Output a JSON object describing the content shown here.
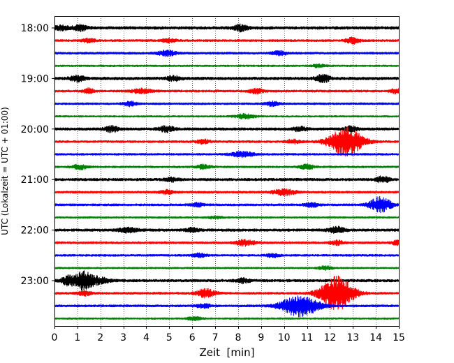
{
  "chart_data": {
    "type": "line",
    "title": "",
    "xlabel": "Zeit  [min]",
    "ylabel": "UTC (Lokalzeit = UTC + 01:00)",
    "xlim": [
      0,
      15
    ],
    "x_ticks": [
      0,
      1,
      2,
      3,
      4,
      5,
      6,
      7,
      8,
      9,
      10,
      11,
      12,
      13,
      14,
      15
    ],
    "x_tick_labels": [
      "0",
      "1",
      "2",
      "3",
      "4",
      "5",
      "6",
      "7",
      "8",
      "9",
      "10",
      "11",
      "12",
      "13",
      "14",
      "15"
    ],
    "grid": "vertical-dotted",
    "minutes_per_trace": 15,
    "trace_color_cycle": [
      "#000000",
      "#ff0000",
      "#0000ff",
      "#008000"
    ],
    "y_tick_labels": [
      {
        "label": "18:00",
        "trace_index": 0
      },
      {
        "label": "19:00",
        "trace_index": 4
      },
      {
        "label": "20:00",
        "trace_index": 8
      },
      {
        "label": "21:00",
        "trace_index": 12
      },
      {
        "label": "22:00",
        "trace_index": 16
      },
      {
        "label": "23:00",
        "trace_index": 20
      }
    ],
    "traces": [
      {
        "start": "18:00",
        "color": "#000000",
        "noise": 2.0,
        "bursts": [
          {
            "t": 0.3,
            "amp": 3,
            "w": 0.3
          },
          {
            "t": 1.1,
            "amp": 4,
            "w": 0.3
          },
          {
            "t": 8.1,
            "amp": 4,
            "w": 0.3
          }
        ]
      },
      {
        "start": "18:15",
        "color": "#ff0000",
        "noise": 1.5,
        "bursts": [
          {
            "t": 1.5,
            "amp": 2.5,
            "w": 0.3
          },
          {
            "t": 5.0,
            "amp": 2.5,
            "w": 0.3
          },
          {
            "t": 13.0,
            "amp": 4,
            "w": 0.3
          }
        ]
      },
      {
        "start": "18:30",
        "color": "#0000ff",
        "noise": 1.5,
        "bursts": [
          {
            "t": 4.9,
            "amp": 3.5,
            "w": 0.4
          },
          {
            "t": 9.8,
            "amp": 3,
            "w": 0.3
          }
        ]
      },
      {
        "start": "18:45",
        "color": "#008000",
        "noise": 1.2,
        "bursts": [
          {
            "t": 11.5,
            "amp": 2,
            "w": 0.3
          }
        ]
      },
      {
        "start": "19:00",
        "color": "#000000",
        "noise": 2.0,
        "bursts": [
          {
            "t": 1.0,
            "amp": 4,
            "w": 0.3
          },
          {
            "t": 5.2,
            "amp": 3,
            "w": 0.3
          },
          {
            "t": 11.7,
            "amp": 5,
            "w": 0.3
          }
        ]
      },
      {
        "start": "19:15",
        "color": "#ff0000",
        "noise": 1.6,
        "bursts": [
          {
            "t": 1.5,
            "amp": 3.5,
            "w": 0.2
          },
          {
            "t": 3.8,
            "amp": 3,
            "w": 0.4
          },
          {
            "t": 8.8,
            "amp": 3,
            "w": 0.3
          },
          {
            "t": 14.9,
            "amp": 3,
            "w": 0.3
          }
        ]
      },
      {
        "start": "19:30",
        "color": "#0000ff",
        "noise": 1.4,
        "bursts": [
          {
            "t": 3.3,
            "amp": 3,
            "w": 0.3
          },
          {
            "t": 9.5,
            "amp": 3,
            "w": 0.3
          }
        ]
      },
      {
        "start": "19:45",
        "color": "#008000",
        "noise": 1.2,
        "bursts": [
          {
            "t": 8.3,
            "amp": 3.5,
            "w": 0.4
          }
        ]
      },
      {
        "start": "20:00",
        "color": "#000000",
        "noise": 1.8,
        "bursts": [
          {
            "t": 2.5,
            "amp": 4,
            "w": 0.3
          },
          {
            "t": 4.9,
            "amp": 4,
            "w": 0.35
          },
          {
            "t": 10.7,
            "amp": 3,
            "w": 0.3
          },
          {
            "t": 12.9,
            "amp": 3.5,
            "w": 0.3
          }
        ]
      },
      {
        "start": "20:15",
        "color": "#ff0000",
        "noise": 1.5,
        "bursts": [
          {
            "t": 6.5,
            "amp": 2.5,
            "w": 0.3
          },
          {
            "t": 10.4,
            "amp": 2.5,
            "w": 0.3
          },
          {
            "t": 12.7,
            "amp": 20,
            "w": 0.7
          }
        ]
      },
      {
        "start": "20:30",
        "color": "#0000ff",
        "noise": 1.4,
        "bursts": [
          {
            "t": 8.2,
            "amp": 3.5,
            "w": 0.5
          }
        ]
      },
      {
        "start": "20:45",
        "color": "#008000",
        "noise": 1.3,
        "bursts": [
          {
            "t": 1.1,
            "amp": 3.5,
            "w": 0.3
          },
          {
            "t": 6.5,
            "amp": 3,
            "w": 0.3
          },
          {
            "t": 11.0,
            "amp": 3.5,
            "w": 0.3
          }
        ]
      },
      {
        "start": "21:00",
        "color": "#000000",
        "noise": 1.8,
        "bursts": [
          {
            "t": 5.1,
            "amp": 2.5,
            "w": 0.3
          },
          {
            "t": 14.3,
            "amp": 4,
            "w": 0.3
          }
        ]
      },
      {
        "start": "21:15",
        "color": "#ff0000",
        "noise": 1.5,
        "bursts": [
          {
            "t": 4.9,
            "amp": 3,
            "w": 0.3
          },
          {
            "t": 10.0,
            "amp": 4,
            "w": 0.5
          }
        ]
      },
      {
        "start": "21:30",
        "color": "#0000ff",
        "noise": 1.5,
        "bursts": [
          {
            "t": 6.2,
            "amp": 2.5,
            "w": 0.3
          },
          {
            "t": 11.2,
            "amp": 3,
            "w": 0.3
          },
          {
            "t": 14.2,
            "amp": 11,
            "w": 0.45
          }
        ]
      },
      {
        "start": "21:45",
        "color": "#008000",
        "noise": 1.2,
        "bursts": [
          {
            "t": 7.0,
            "amp": 2,
            "w": 0.3
          }
        ]
      },
      {
        "start": "22:00",
        "color": "#000000",
        "noise": 1.8,
        "bursts": [
          {
            "t": 3.2,
            "amp": 3.5,
            "w": 0.4
          },
          {
            "t": 6.0,
            "amp": 2.5,
            "w": 0.3
          },
          {
            "t": 12.3,
            "amp": 4,
            "w": 0.35
          }
        ]
      },
      {
        "start": "22:15",
        "color": "#ff0000",
        "noise": 1.5,
        "bursts": [
          {
            "t": 8.3,
            "amp": 4,
            "w": 0.4
          },
          {
            "t": 12.3,
            "amp": 3,
            "w": 0.3
          },
          {
            "t": 14.9,
            "amp": 3,
            "w": 0.2
          }
        ]
      },
      {
        "start": "22:30",
        "color": "#0000ff",
        "noise": 1.4,
        "bursts": [
          {
            "t": 6.3,
            "amp": 2.5,
            "w": 0.3
          },
          {
            "t": 9.5,
            "amp": 2.5,
            "w": 0.3
          }
        ]
      },
      {
        "start": "22:45",
        "color": "#008000",
        "noise": 1.2,
        "bursts": [
          {
            "t": 11.8,
            "amp": 2.5,
            "w": 0.3
          }
        ]
      },
      {
        "start": "23:00",
        "color": "#000000",
        "noise": 1.8,
        "bursts": [
          {
            "t": 0.6,
            "amp": 6,
            "w": 0.3
          },
          {
            "t": 1.3,
            "amp": 14,
            "w": 0.4
          },
          {
            "t": 2.0,
            "amp": 4,
            "w": 0.4
          },
          {
            "t": 8.2,
            "amp": 3,
            "w": 0.3
          }
        ]
      },
      {
        "start": "23:15",
        "color": "#ff0000",
        "noise": 1.5,
        "bursts": [
          {
            "t": 1.3,
            "amp": 3,
            "w": 0.3
          },
          {
            "t": 6.6,
            "amp": 6,
            "w": 0.4
          },
          {
            "t": 12.3,
            "amp": 24,
            "w": 0.7
          }
        ]
      },
      {
        "start": "23:30",
        "color": "#0000ff",
        "noise": 1.5,
        "bursts": [
          {
            "t": 6.5,
            "amp": 3,
            "w": 0.3
          },
          {
            "t": 10.7,
            "amp": 15,
            "w": 0.8
          }
        ]
      },
      {
        "start": "23:45",
        "color": "#008000",
        "noise": 1.2,
        "bursts": [
          {
            "t": 6.1,
            "amp": 2.5,
            "w": 0.3
          }
        ]
      }
    ]
  }
}
